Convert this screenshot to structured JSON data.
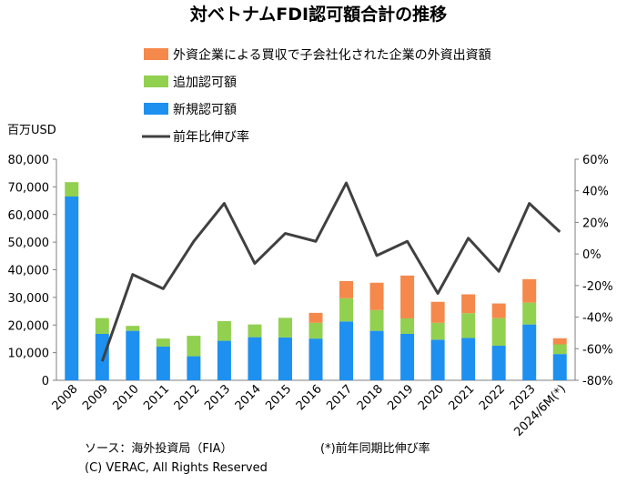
{
  "title": "対ベトナムFDI認可額合計の推移",
  "y_unit_label": "百万USD",
  "footer": {
    "source": "ソース：海外投資局（FIA）",
    "note": "(*)前年同期比伸び率",
    "copyright": "(C) VERAC, All Rights Reserved"
  },
  "colors": {
    "acquisition": "#f5884b",
    "additional": "#92d050",
    "new": "#1e90ef",
    "growth": "#404040",
    "grid": "#d9d9d9",
    "axis": "#7f7f7f"
  },
  "chart_data": {
    "type": "bar",
    "stacked": true,
    "categories": [
      "2008",
      "2009",
      "2010",
      "2011",
      "2012",
      "2013",
      "2014",
      "2015",
      "2016",
      "2017",
      "2018",
      "2019",
      "2020",
      "2021",
      "2022",
      "2023",
      "2024/6M(*)"
    ],
    "series": [
      {
        "name": "新規認可額",
        "key": "new",
        "values": [
          66500,
          16800,
          17900,
          12200,
          8700,
          14300,
          15600,
          15500,
          15100,
          21300,
          17900,
          16800,
          14700,
          15300,
          12500,
          20200,
          9500
        ]
      },
      {
        "name": "追加認可額",
        "key": "additional",
        "values": [
          5200,
          5700,
          1800,
          2900,
          7400,
          7100,
          4600,
          7100,
          5700,
          8400,
          7500,
          5600,
          6100,
          9000,
          10000,
          7900,
          3500
        ]
      },
      {
        "name": "外資企業による買収で子会社化された企業の外資出資額",
        "key": "acquisition",
        "values": [
          0,
          0,
          0,
          0,
          0,
          0,
          0,
          0,
          3600,
          6200,
          9900,
          15500,
          7600,
          6800,
          5300,
          8500,
          2200
        ]
      }
    ],
    "line": {
      "name": "前年比伸び率",
      "axis": "right",
      "unit": "%",
      "values": [
        null,
        -68,
        -13,
        -22,
        8,
        32,
        -6,
        13,
        8,
        45,
        -1,
        8,
        -25,
        10,
        -11,
        32,
        14
      ]
    },
    "y_left": {
      "label": "百万USD",
      "min": 0,
      "max": 80000,
      "ticks": [
        "0",
        "10,000",
        "20,000",
        "30,000",
        "40,000",
        "50,000",
        "60,000",
        "70,000",
        "80,000"
      ]
    },
    "y_right": {
      "min": -80,
      "max": 60,
      "ticks": [
        "-80%",
        "-60%",
        "-40%",
        "-20%",
        "0%",
        "20%",
        "40%",
        "60%"
      ]
    },
    "grid": false,
    "legend_position": "top"
  }
}
